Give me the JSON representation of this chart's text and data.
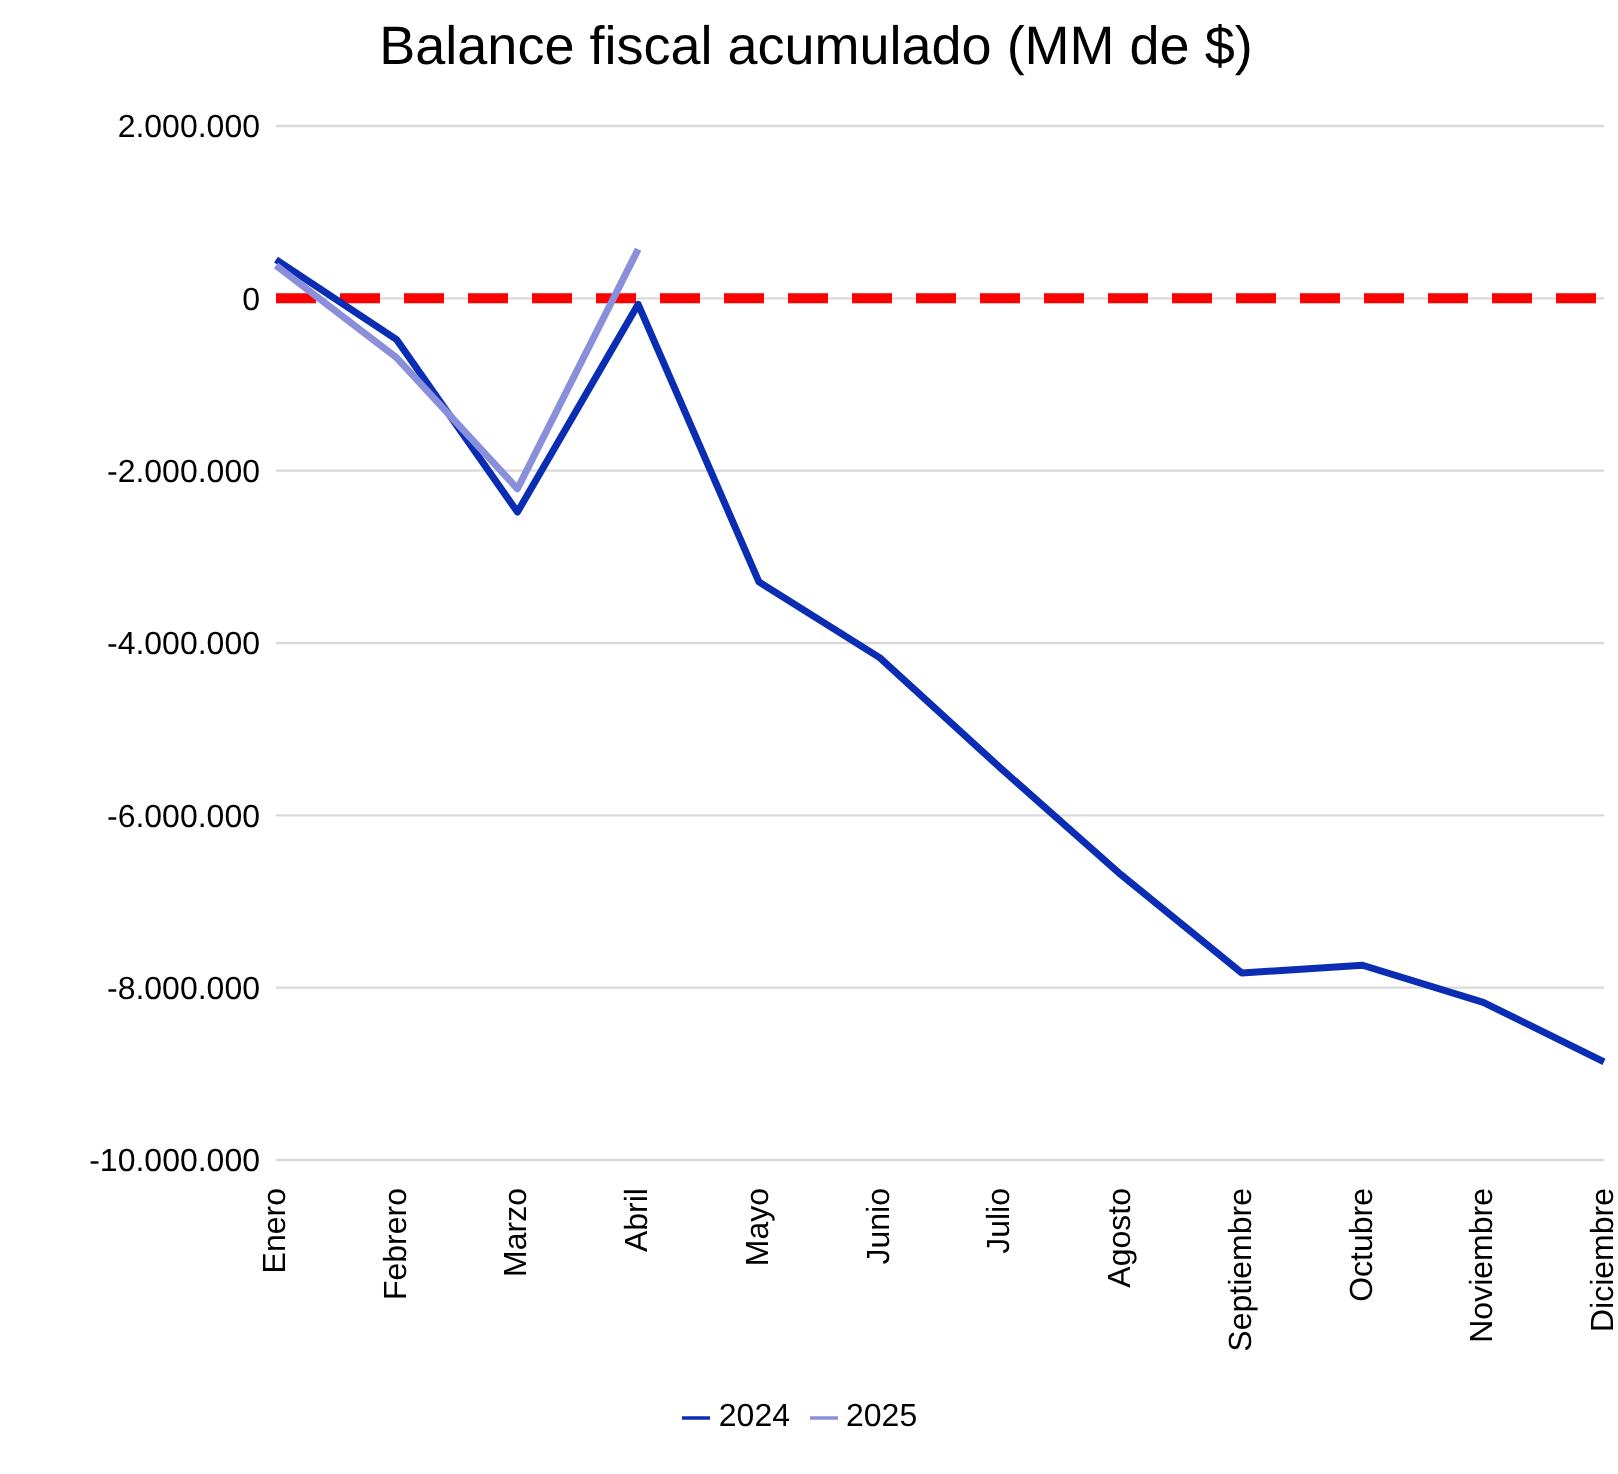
{
  "chart_data": {
    "type": "line",
    "title": "Balance fiscal acumulado (MM de $)",
    "categories": [
      "Enero",
      "Febrero",
      "Marzo",
      "Abril",
      "Mayo",
      "Junio",
      "Julio",
      "Agosto",
      "Septiembre",
      "Octubre",
      "Noviembre",
      "Diciembre"
    ],
    "series": [
      {
        "name": "2024",
        "color": "#0a2db4",
        "values": [
          450000,
          -480000,
          -2480000,
          -70000,
          -3290000,
          -4170000,
          -5450000,
          -6690000,
          -7830000,
          -7740000,
          -8170000,
          -8860000
        ]
      },
      {
        "name": "2025",
        "color": "#8a8fdc",
        "values": [
          380000,
          -690000,
          -2210000,
          570000,
          null,
          null,
          null,
          null,
          null,
          null,
          null,
          null
        ]
      }
    ],
    "ylim": [
      -10000000,
      2000000
    ],
    "yticks": [
      {
        "value": -10000000,
        "label": "-10.000.000"
      },
      {
        "value": -8000000,
        "label": "-8.000.000"
      },
      {
        "value": -6000000,
        "label": "-6.000.000"
      },
      {
        "value": -4000000,
        "label": "-4.000.000"
      },
      {
        "value": -2000000,
        "label": "-2.000.000"
      },
      {
        "value": 0,
        "label": "0"
      },
      {
        "value": 2000000,
        "label": "2.000.000"
      }
    ],
    "ref_lines": [
      {
        "axis": "y",
        "value": 0,
        "label": null,
        "color": "#ff0000",
        "line_style": "dashed"
      }
    ],
    "grid": "y",
    "legend": "bottom",
    "marker": "none",
    "line_style": "solid"
  }
}
